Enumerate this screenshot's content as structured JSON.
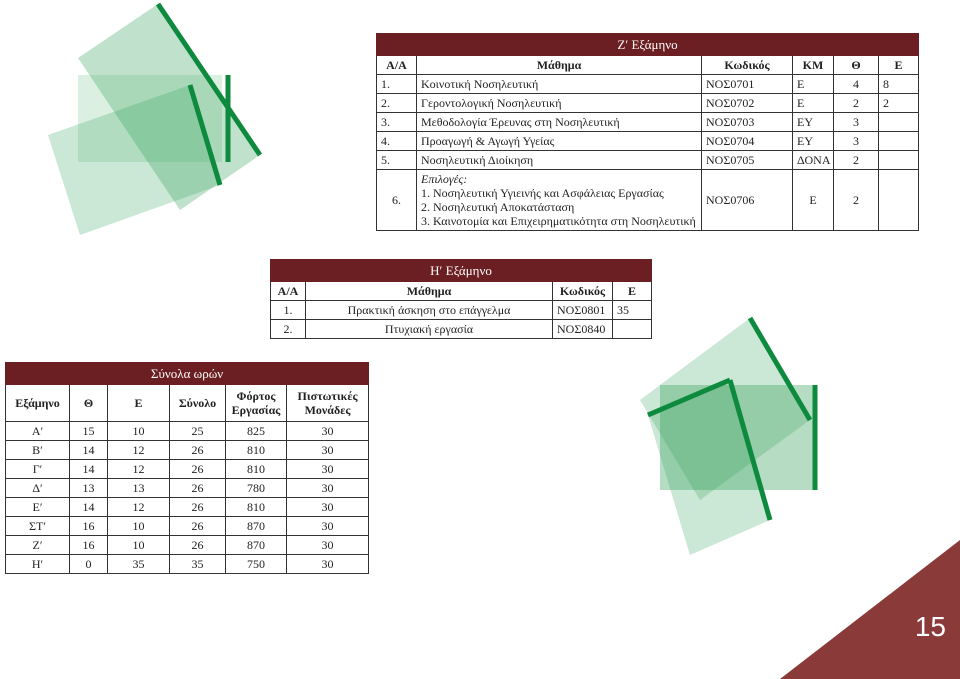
{
  "table1": {
    "title": "Ζ′ Εξάμηνο",
    "headers": [
      "Α/Α",
      "Μάθημα",
      "Κωδικός",
      "ΚΜ",
      "Θ",
      "Ε"
    ],
    "rows": [
      [
        "1.",
        "Κοινοτική Νοσηλευτική",
        "ΝΟΣ0701",
        "Ε",
        4,
        8
      ],
      [
        "2.",
        "Γεροντολογική Νοσηλευτική",
        "ΝΟΣ0702",
        "Ε",
        2,
        2
      ],
      [
        "3.",
        "Μεθοδολογία Έρευνας στη Νοσηλευτική",
        "ΝΟΣ0703",
        "ΕΥ",
        3
      ],
      [
        "4.",
        "Προαγωγή & Αγωγή Υγείας",
        "ΝΟΣ0704",
        "ΕΥ",
        3
      ],
      [
        "5.",
        "Νοσηλευτική Διοίκηση",
        "ΝΟΣ0705",
        "ΔΟΝΑ",
        2
      ]
    ],
    "option_row": {
      "number": "6.",
      "label": "Επιλογές:",
      "options": [
        "1. Νοσηλευτική Υγιεινής και Ασφάλειας Εργασίας",
        "2. Νοσηλευτική Αποκατάσταση",
        "3. Καινοτομία και Επιχειρηματικότητα στη Νοσηλευτική"
      ],
      "code": "ΝΟΣ0706",
      "type": "Ε",
      "theory": 2
    }
  },
  "table2": {
    "title": "Η′ Εξάμηνο",
    "headers": [
      "Α/Α",
      "Μάθημα",
      "Κωδικός",
      "Ε"
    ],
    "rows": [
      [
        "1.",
        "Πρακτική άσκηση στο επάγγελμα",
        "ΝΟΣ0801",
        35
      ],
      [
        "2.",
        "Πτυχιακή εργασία",
        "ΝΟΣ0840"
      ]
    ]
  },
  "table3": {
    "title": "Σύνολα ωρών",
    "headers": [
      "Εξάμηνο",
      "Θ",
      "Ε",
      "Σύνολο",
      "Φόρτος Εργασίας",
      "Πιστωτικές Μονάδες"
    ],
    "rows": [
      [
        "Α′",
        15,
        10,
        25,
        825,
        30
      ],
      [
        "Β′",
        14,
        12,
        26,
        810,
        30
      ],
      [
        "Γ′",
        14,
        12,
        26,
        810,
        30
      ],
      [
        "Δ′",
        13,
        13,
        26,
        780,
        30
      ],
      [
        "Ε′",
        14,
        12,
        26,
        810,
        30
      ],
      [
        "ΣΤ′",
        16,
        10,
        26,
        870,
        30
      ],
      [
        "Ζ′",
        16,
        10,
        26,
        870,
        30
      ],
      [
        "Η′",
        0,
        35,
        35,
        750,
        30
      ]
    ]
  },
  "page_number": 15
}
